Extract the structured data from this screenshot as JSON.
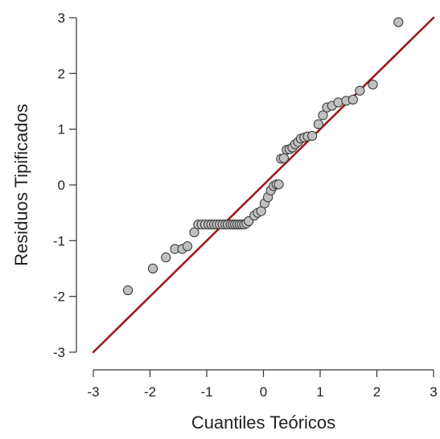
{
  "chart_data": {
    "type": "scatter",
    "title": "",
    "xlabel": "Cuantiles Teóricos",
    "ylabel": "Residuos Tipificados",
    "xlim": [
      -3,
      3
    ],
    "ylim": [
      -3,
      3
    ],
    "xticks": [
      "-3",
      "-2",
      "-1",
      "0",
      "1",
      "2",
      "3"
    ],
    "yticks": [
      "-3",
      "-2",
      "-1",
      "0",
      "1",
      "2",
      "3"
    ],
    "grid": false,
    "legend": "none",
    "reference_line": {
      "slope": 1,
      "intercept": 0,
      "color": "#9b1b1b"
    },
    "point_fill": "#c0c0c0",
    "point_stroke": "#333333",
    "series": [
      {
        "points": [
          [
            -2.39,
            -1.89
          ],
          [
            -1.95,
            -1.5
          ],
          [
            -1.72,
            -1.3
          ],
          [
            -1.56,
            -1.15
          ],
          [
            -1.43,
            -1.15
          ],
          [
            -1.34,
            -1.1
          ],
          [
            -1.22,
            -0.85
          ],
          [
            -1.15,
            -0.71
          ],
          [
            -1.09,
            -0.71
          ],
          [
            -1.03,
            -0.71
          ],
          [
            -0.97,
            -0.71
          ],
          [
            -0.92,
            -0.71
          ],
          [
            -0.87,
            -0.71
          ],
          [
            -0.82,
            -0.71
          ],
          [
            -0.77,
            -0.71
          ],
          [
            -0.72,
            -0.71
          ],
          [
            -0.67,
            -0.71
          ],
          [
            -0.63,
            -0.71
          ],
          [
            -0.58,
            -0.71
          ],
          [
            -0.54,
            -0.71
          ],
          [
            -0.5,
            -0.71
          ],
          [
            -0.46,
            -0.71
          ],
          [
            -0.42,
            -0.71
          ],
          [
            -0.38,
            -0.71
          ],
          [
            -0.34,
            -0.71
          ],
          [
            -0.3,
            -0.69
          ],
          [
            -0.26,
            -0.65
          ],
          [
            -0.16,
            -0.55
          ],
          [
            -0.1,
            -0.5
          ],
          [
            -0.04,
            -0.47
          ],
          [
            0.02,
            -0.33
          ],
          [
            0.08,
            -0.22
          ],
          [
            0.13,
            -0.1
          ],
          [
            0.18,
            -0.02
          ],
          [
            0.23,
            0.01
          ],
          [
            0.27,
            0.01
          ],
          [
            0.31,
            0.47
          ],
          [
            0.36,
            0.48
          ],
          [
            0.41,
            0.63
          ],
          [
            0.46,
            0.64
          ],
          [
            0.51,
            0.67
          ],
          [
            0.56,
            0.73
          ],
          [
            0.61,
            0.77
          ],
          [
            0.66,
            0.83
          ],
          [
            0.72,
            0.85
          ],
          [
            0.78,
            0.87
          ],
          [
            0.86,
            0.88
          ],
          [
            0.97,
            1.09
          ],
          [
            1.05,
            1.25
          ],
          [
            1.12,
            1.39
          ],
          [
            1.21,
            1.42
          ],
          [
            1.32,
            1.48
          ],
          [
            1.46,
            1.51
          ],
          [
            1.58,
            1.53
          ],
          [
            1.7,
            1.69
          ],
          [
            1.93,
            1.8
          ],
          [
            2.38,
            2.92
          ]
        ]
      }
    ]
  }
}
